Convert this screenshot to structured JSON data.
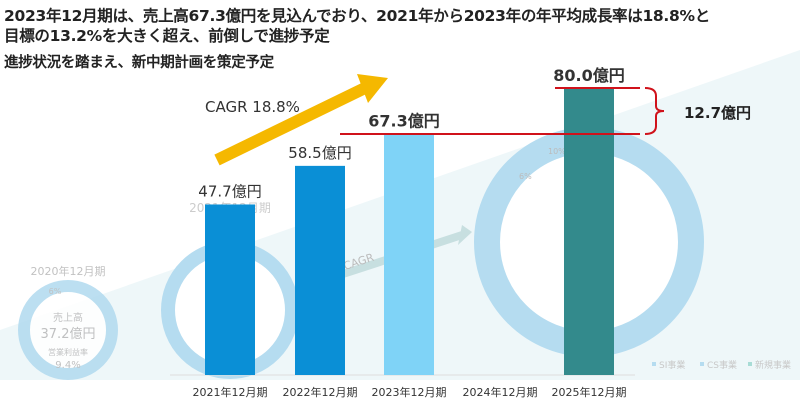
{
  "headline": {
    "line1": "2023年12月期は、売上高67.3億円を見込んでおり、2021年から2023年の年平均成長率は18.8%と",
    "line2": "目標の13.2%を大きく超え、前倒しで進捗予定",
    "line3": "進捗状況を踏まえ、新中期計画を策定予定"
  },
  "colors": {
    "bar_2021": "#0a8fd6",
    "bar_2022": "#0a8fd6",
    "bar_2023": "#7fd3f7",
    "bar_2025": "#338a8c",
    "arrow": "#f5b800",
    "gap_line": "#d0121b",
    "donut": "#b5dcf0"
  },
  "background": {
    "donut_2020": {
      "period": "2020年12月期",
      "pct": "6%",
      "sales_label": "売上高",
      "sales": "37.2億円",
      "margin_label": "営業利益率",
      "margin": "9.4%"
    },
    "donut_2021": {
      "period": "2021年12月期"
    },
    "donut_2025": {
      "pct1": "6%",
      "pct2": "10%"
    },
    "cagr_faint": "CAGR",
    "legend": [
      "SI事業",
      "CS事業",
      "新規事業"
    ]
  },
  "chart_data": {
    "type": "bar",
    "categories": [
      "2021年12月期",
      "2022年12月期",
      "2023年12月期",
      "2024年12月期",
      "2025年12月期"
    ],
    "values": [
      47.7,
      58.5,
      67.3,
      null,
      80.0
    ],
    "data_labels": [
      "47.7億円",
      "58.5億円",
      "67.3億円",
      "",
      "80.0億円"
    ],
    "unit": "億円",
    "ylim": [
      0,
      80
    ],
    "annotations": {
      "cagr": "CAGR 18.8%",
      "gap": "12.7億円"
    },
    "grid": false
  }
}
